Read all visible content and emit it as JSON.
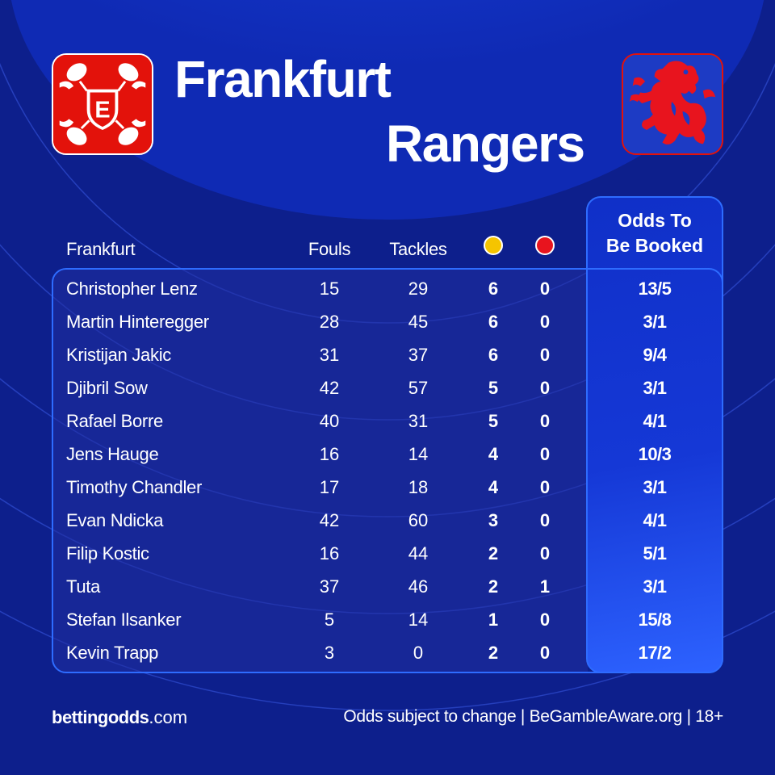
{
  "home_team": "Frankfurt",
  "away_team": "Rangers",
  "colors": {
    "background": "#0d1f8c",
    "accent_blue": "#2e6cff",
    "yellow_card": "#f5c400",
    "red_card": "#e8141e",
    "home_red": "#e3120b"
  },
  "icons": {
    "home_logo": "eintracht-frankfurt-crest-icon",
    "away_logo": "rampant-lion-crest-icon",
    "yellow_card": "yellow-card-icon",
    "red_card": "red-card-icon"
  },
  "home_logo_letter": "E",
  "table": {
    "team_header": "Frankfurt",
    "fouls_header": "Fouls",
    "tackles_header": "Tackles",
    "odds_header_line1": "Odds To",
    "odds_header_line2": "Be Booked",
    "rows": [
      {
        "name": "Christopher Lenz",
        "fouls": "15",
        "tackles": "29",
        "yellow": "6",
        "red": "0",
        "odds": "13/5"
      },
      {
        "name": "Martin Hinteregger",
        "fouls": "28",
        "tackles": "45",
        "yellow": "6",
        "red": "0",
        "odds": "3/1"
      },
      {
        "name": "Kristijan Jakic",
        "fouls": "31",
        "tackles": "37",
        "yellow": "6",
        "red": "0",
        "odds": "9/4"
      },
      {
        "name": "Djibril Sow",
        "fouls": "42",
        "tackles": "57",
        "yellow": "5",
        "red": "0",
        "odds": "3/1"
      },
      {
        "name": "Rafael Borre",
        "fouls": "40",
        "tackles": "31",
        "yellow": "5",
        "red": "0",
        "odds": "4/1"
      },
      {
        "name": "Jens Hauge",
        "fouls": "16",
        "tackles": "14",
        "yellow": "4",
        "red": "0",
        "odds": "10/3"
      },
      {
        "name": "Timothy Chandler",
        "fouls": "17",
        "tackles": "18",
        "yellow": "4",
        "red": "0",
        "odds": "3/1"
      },
      {
        "name": "Evan Ndicka",
        "fouls": "42",
        "tackles": "60",
        "yellow": "3",
        "red": "0",
        "odds": "4/1"
      },
      {
        "name": "Filip Kostic",
        "fouls": "16",
        "tackles": "44",
        "yellow": "2",
        "red": "0",
        "odds": "5/1"
      },
      {
        "name": "Tuta",
        "fouls": "37",
        "tackles": "46",
        "yellow": "2",
        "red": "1",
        "odds": "3/1"
      },
      {
        "name": "Stefan Ilsanker",
        "fouls": "5",
        "tackles": "14",
        "yellow": "1",
        "red": "0",
        "odds": "15/8"
      },
      {
        "name": "Kevin Trapp",
        "fouls": "3",
        "tackles": "0",
        "yellow": "2",
        "red": "0",
        "odds": "17/2"
      }
    ]
  },
  "footer": {
    "brand_bold": "bettingodds",
    "brand_light": ".com",
    "disclaimer": "Odds subject to change | BeGambleAware.org | 18+"
  }
}
